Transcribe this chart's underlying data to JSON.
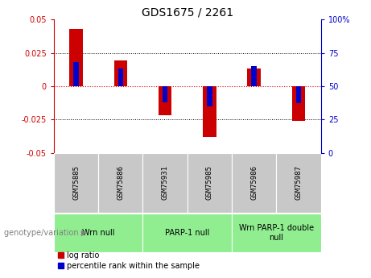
{
  "title": "GDS1675 / 2261",
  "samples": [
    "GSM75885",
    "GSM75886",
    "GSM75931",
    "GSM75985",
    "GSM75986",
    "GSM75987"
  ],
  "log_ratios": [
    0.043,
    0.019,
    -0.022,
    -0.038,
    0.013,
    -0.026
  ],
  "percentile_ranks": [
    68,
    63,
    38,
    35,
    65,
    37
  ],
  "ylim_left": [
    -0.05,
    0.05
  ],
  "ylim_right": [
    0,
    100
  ],
  "yticks_left": [
    -0.05,
    -0.025,
    0,
    0.025,
    0.05
  ],
  "yticks_left_labels": [
    "-0.05",
    "-0.025",
    "0",
    "0.025",
    "0.05"
  ],
  "yticks_right": [
    0,
    25,
    50,
    75,
    100
  ],
  "yticks_right_labels": [
    "0",
    "25",
    "50",
    "75",
    "100%"
  ],
  "groups": [
    {
      "label": "Wrn null",
      "start": 0,
      "end": 2,
      "color": "#90EE90"
    },
    {
      "label": "PARP-1 null",
      "start": 2,
      "end": 4,
      "color": "#90EE90"
    },
    {
      "label": "Wrn PARP-1 double\nnull",
      "start": 4,
      "end": 6,
      "color": "#90EE90"
    }
  ],
  "bar_color": "#CC0000",
  "percentile_color": "#0000CC",
  "zero_line_color": "#CC0000",
  "grid_color": "#000000",
  "bg_color": "#ffffff",
  "sample_bg": "#C8C8C8",
  "bar_width": 0.3,
  "percentile_bar_width": 0.12,
  "legend_log_ratio": "log ratio",
  "legend_percentile": "percentile rank within the sample",
  "genotype_label": "genotype/variation"
}
